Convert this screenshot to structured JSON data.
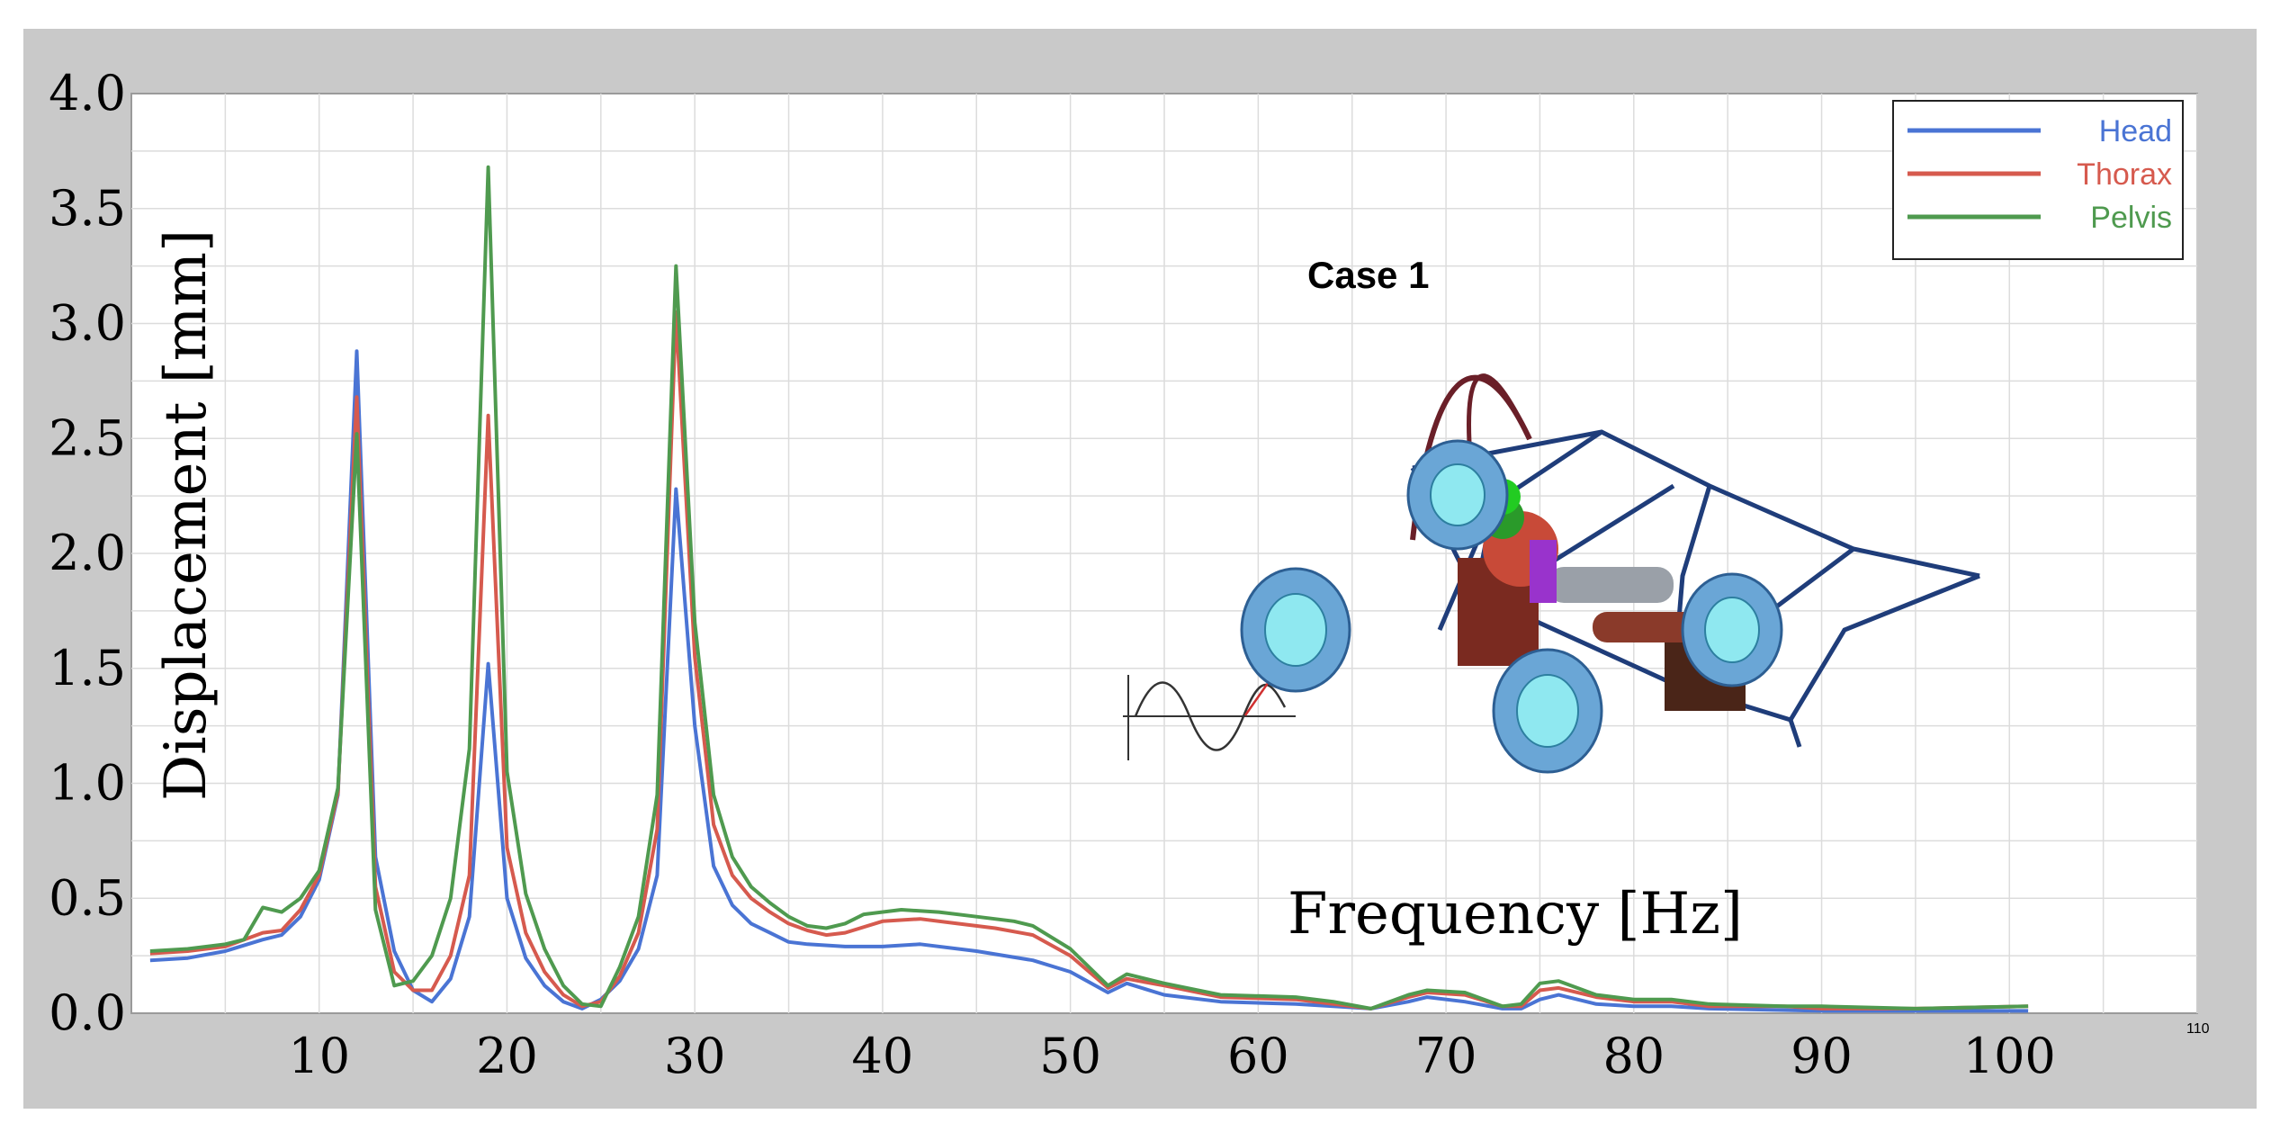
{
  "chart_data": {
    "type": "line",
    "title": "",
    "annotation": "Case 1",
    "xlabel": "Frequency [Hz]",
    "ylabel": "Displacement [mm]",
    "xlim": [
      0,
      110
    ],
    "ylim": [
      0,
      4.0
    ],
    "x_ticks": [
      10,
      20,
      30,
      40,
      50,
      60,
      70,
      80,
      90,
      100
    ],
    "x_tick_labels": [
      "10",
      "20",
      "30",
      "40",
      "50",
      "60",
      "70",
      "80",
      "90",
      "100"
    ],
    "x_edge_tick_label": "110",
    "y_ticks": [
      0,
      0.5,
      1.0,
      1.5,
      2.0,
      2.5,
      3.0,
      3.5,
      4.0
    ],
    "y_tick_labels": [
      "0.0",
      "0.5",
      "1.0",
      "1.5",
      "2.0",
      "2.5",
      "3.0",
      "3.5",
      "4.0"
    ],
    "grid": true,
    "legend_position": "top-right",
    "series": [
      {
        "name": "Head",
        "color": "#4a74d4",
        "points": [
          [
            1,
            0.23
          ],
          [
            3,
            0.24
          ],
          [
            5,
            0.27
          ],
          [
            7,
            0.32
          ],
          [
            8,
            0.34
          ],
          [
            9,
            0.42
          ],
          [
            10,
            0.58
          ],
          [
            11,
            0.95
          ],
          [
            12,
            2.88
          ],
          [
            13,
            0.68
          ],
          [
            14,
            0.27
          ],
          [
            15,
            0.1
          ],
          [
            16,
            0.05
          ],
          [
            17,
            0.15
          ],
          [
            18,
            0.42
          ],
          [
            19,
            1.52
          ],
          [
            20,
            0.5
          ],
          [
            21,
            0.24
          ],
          [
            22,
            0.12
          ],
          [
            23,
            0.05
          ],
          [
            24,
            0.02
          ],
          [
            25,
            0.06
          ],
          [
            26,
            0.14
          ],
          [
            27,
            0.28
          ],
          [
            28,
            0.6
          ],
          [
            29,
            2.28
          ],
          [
            30,
            1.25
          ],
          [
            31,
            0.64
          ],
          [
            32,
            0.47
          ],
          [
            33,
            0.39
          ],
          [
            34,
            0.35
          ],
          [
            35,
            0.31
          ],
          [
            36,
            0.3
          ],
          [
            38,
            0.29
          ],
          [
            40,
            0.29
          ],
          [
            42,
            0.3
          ],
          [
            45,
            0.27
          ],
          [
            48,
            0.23
          ],
          [
            50,
            0.18
          ],
          [
            52,
            0.09
          ],
          [
            53,
            0.13
          ],
          [
            55,
            0.08
          ],
          [
            58,
            0.05
          ],
          [
            62,
            0.04
          ],
          [
            64,
            0.03
          ],
          [
            66,
            0.02
          ],
          [
            68,
            0.05
          ],
          [
            69,
            0.07
          ],
          [
            71,
            0.05
          ],
          [
            73,
            0.02
          ],
          [
            74,
            0.02
          ],
          [
            75,
            0.06
          ],
          [
            76,
            0.08
          ],
          [
            78,
            0.04
          ],
          [
            80,
            0.03
          ],
          [
            82,
            0.03
          ],
          [
            84,
            0.02
          ],
          [
            90,
            0.01
          ],
          [
            95,
            0.01
          ],
          [
            101,
            0.01
          ]
        ]
      },
      {
        "name": "Thorax",
        "color": "#d65a4e",
        "points": [
          [
            1,
            0.26
          ],
          [
            3,
            0.27
          ],
          [
            5,
            0.29
          ],
          [
            7,
            0.35
          ],
          [
            8,
            0.36
          ],
          [
            9,
            0.45
          ],
          [
            10,
            0.6
          ],
          [
            11,
            0.96
          ],
          [
            12,
            2.68
          ],
          [
            13,
            0.55
          ],
          [
            14,
            0.18
          ],
          [
            15,
            0.1
          ],
          [
            16,
            0.1
          ],
          [
            17,
            0.25
          ],
          [
            18,
            0.6
          ],
          [
            19,
            2.6
          ],
          [
            20,
            0.72
          ],
          [
            21,
            0.35
          ],
          [
            22,
            0.18
          ],
          [
            23,
            0.08
          ],
          [
            24,
            0.03
          ],
          [
            25,
            0.05
          ],
          [
            26,
            0.16
          ],
          [
            27,
            0.35
          ],
          [
            28,
            0.8
          ],
          [
            29,
            3.05
          ],
          [
            30,
            1.55
          ],
          [
            31,
            0.82
          ],
          [
            32,
            0.6
          ],
          [
            33,
            0.5
          ],
          [
            34,
            0.44
          ],
          [
            35,
            0.39
          ],
          [
            36,
            0.36
          ],
          [
            37,
            0.34
          ],
          [
            38,
            0.35
          ],
          [
            40,
            0.4
          ],
          [
            42,
            0.41
          ],
          [
            44,
            0.39
          ],
          [
            46,
            0.37
          ],
          [
            48,
            0.34
          ],
          [
            50,
            0.25
          ],
          [
            52,
            0.11
          ],
          [
            53,
            0.15
          ],
          [
            55,
            0.12
          ],
          [
            58,
            0.07
          ],
          [
            62,
            0.06
          ],
          [
            64,
            0.04
          ],
          [
            66,
            0.02
          ],
          [
            68,
            0.07
          ],
          [
            69,
            0.09
          ],
          [
            71,
            0.08
          ],
          [
            73,
            0.03
          ],
          [
            74,
            0.03
          ],
          [
            75,
            0.1
          ],
          [
            76,
            0.11
          ],
          [
            78,
            0.07
          ],
          [
            80,
            0.05
          ],
          [
            82,
            0.05
          ],
          [
            84,
            0.03
          ],
          [
            88,
            0.03
          ],
          [
            90,
            0.02
          ],
          [
            95,
            0.02
          ],
          [
            101,
            0.03
          ]
        ]
      },
      {
        "name": "Pelvis",
        "color": "#4f9a4f",
        "points": [
          [
            1,
            0.27
          ],
          [
            3,
            0.28
          ],
          [
            5,
            0.3
          ],
          [
            6,
            0.32
          ],
          [
            7,
            0.46
          ],
          [
            8,
            0.44
          ],
          [
            9,
            0.5
          ],
          [
            10,
            0.62
          ],
          [
            11,
            0.98
          ],
          [
            12,
            2.52
          ],
          [
            13,
            0.45
          ],
          [
            14,
            0.12
          ],
          [
            15,
            0.14
          ],
          [
            16,
            0.25
          ],
          [
            17,
            0.5
          ],
          [
            18,
            1.15
          ],
          [
            19,
            3.68
          ],
          [
            20,
            1.05
          ],
          [
            21,
            0.52
          ],
          [
            22,
            0.28
          ],
          [
            23,
            0.12
          ],
          [
            24,
            0.04
          ],
          [
            25,
            0.03
          ],
          [
            26,
            0.2
          ],
          [
            27,
            0.42
          ],
          [
            28,
            0.95
          ],
          [
            29,
            3.25
          ],
          [
            30,
            1.7
          ],
          [
            31,
            0.95
          ],
          [
            32,
            0.68
          ],
          [
            33,
            0.55
          ],
          [
            34,
            0.48
          ],
          [
            35,
            0.42
          ],
          [
            36,
            0.38
          ],
          [
            37,
            0.37
          ],
          [
            38,
            0.39
          ],
          [
            39,
            0.43
          ],
          [
            41,
            0.45
          ],
          [
            43,
            0.44
          ],
          [
            45,
            0.42
          ],
          [
            47,
            0.4
          ],
          [
            48,
            0.38
          ],
          [
            50,
            0.28
          ],
          [
            52,
            0.12
          ],
          [
            53,
            0.17
          ],
          [
            55,
            0.13
          ],
          [
            58,
            0.08
          ],
          [
            62,
            0.07
          ],
          [
            64,
            0.05
          ],
          [
            66,
            0.02
          ],
          [
            68,
            0.08
          ],
          [
            69,
            0.1
          ],
          [
            71,
            0.09
          ],
          [
            73,
            0.03
          ],
          [
            74,
            0.04
          ],
          [
            75,
            0.13
          ],
          [
            76,
            0.14
          ],
          [
            78,
            0.08
          ],
          [
            80,
            0.06
          ],
          [
            82,
            0.06
          ],
          [
            84,
            0.04
          ],
          [
            88,
            0.03
          ],
          [
            90,
            0.03
          ],
          [
            95,
            0.02
          ],
          [
            101,
            0.03
          ]
        ]
      }
    ]
  }
}
